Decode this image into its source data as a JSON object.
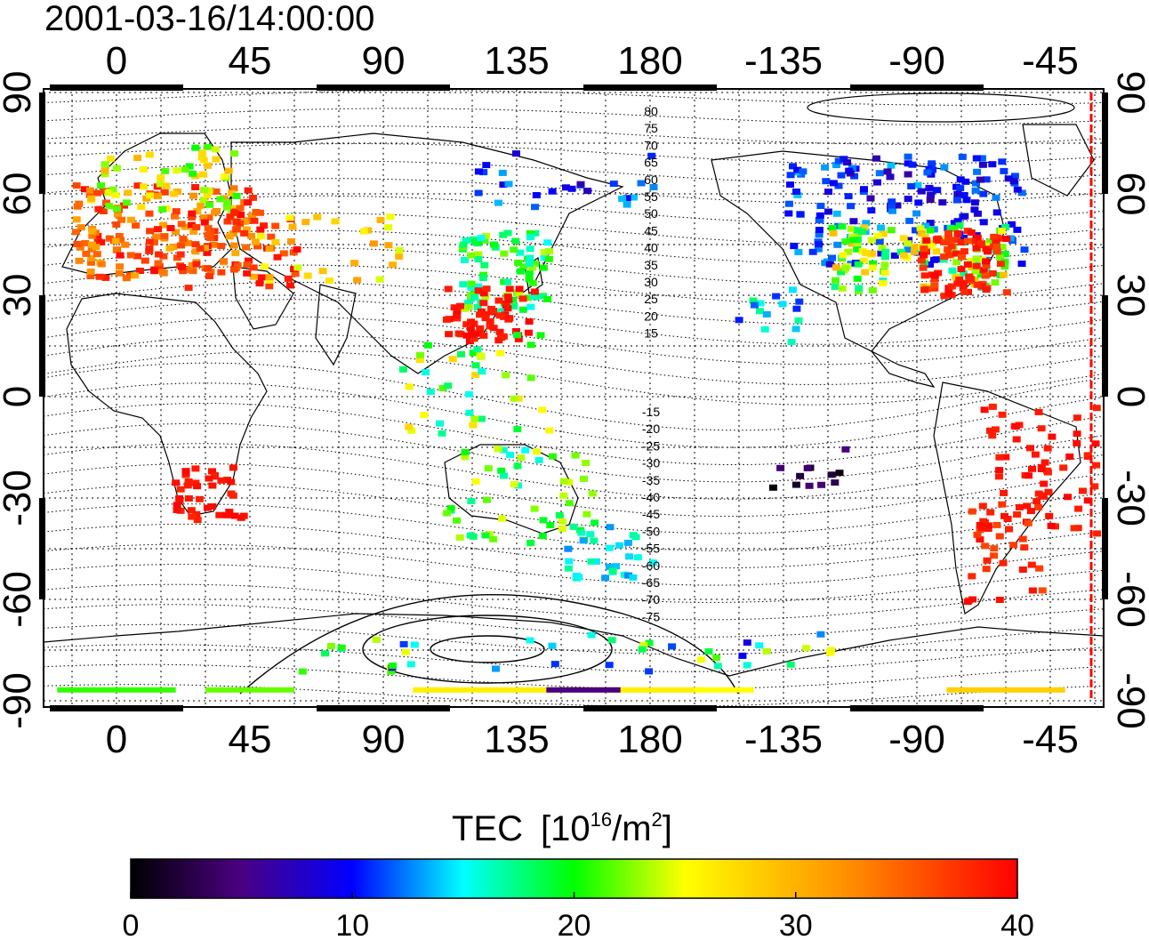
{
  "title": "2001-03-16/14:00:00",
  "map": {
    "lon_ticks": [
      "0",
      "45",
      "90",
      "135",
      "180",
      "-135",
      "-90",
      "-45"
    ],
    "lat_ticks": [
      "90",
      "60",
      "30",
      "0",
      "-30",
      "-60",
      "-90"
    ],
    "contour_labels_north": [
      "80",
      "75",
      "70",
      "65",
      "60",
      "55",
      "50",
      "45",
      "40",
      "35",
      "30",
      "25",
      "20",
      "15"
    ],
    "contour_labels_south": [
      "-15",
      "-20",
      "-25",
      "-30",
      "-35",
      "-40",
      "-45",
      "-50",
      "-55",
      "-60",
      "-65",
      "-70",
      "-75"
    ],
    "marker_color": "#ff0000"
  },
  "colorbar": {
    "title_main": "TEC",
    "title_unit_prefix": "[10",
    "title_unit_exp": "16",
    "title_unit_mid": "/m",
    "title_unit_exp2": "2",
    "title_unit_suffix": "]",
    "ticks": [
      "0",
      "10",
      "20",
      "30",
      "40"
    ],
    "range": [
      0,
      40
    ],
    "colors": [
      "#000000",
      "#4b0082",
      "#0000ff",
      "#00ffff",
      "#00ff00",
      "#ffff00",
      "#ff8c00",
      "#ff0000"
    ]
  }
}
